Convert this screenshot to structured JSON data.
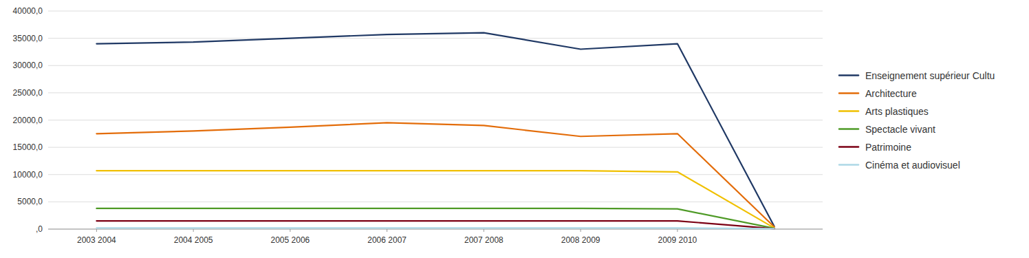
{
  "chart_data": {
    "type": "line",
    "x": [
      2002.5,
      2003.5,
      2004.5,
      2005.5,
      2006.5,
      2007.5,
      2008.5,
      2009.5
    ],
    "xlim": [
      2002,
      2010
    ],
    "xticks": [
      {
        "value": 2002.5,
        "label": "2003 2004"
      },
      {
        "value": 2003.5,
        "label": "2004 2005"
      },
      {
        "value": 2004.5,
        "label": "2005 2006"
      },
      {
        "value": 2005.5,
        "label": "2006 2007"
      },
      {
        "value": 2006.5,
        "label": "2007 2008"
      },
      {
        "value": 2007.5,
        "label": "2008 2009"
      },
      {
        "value": 2008.5,
        "label": "2009 2010"
      }
    ],
    "ylim": [
      0,
      40000
    ],
    "yticks": [
      {
        "value": 0,
        "label": ",0"
      },
      {
        "value": 5000,
        "label": "5000,0"
      },
      {
        "value": 10000,
        "label": "10000,0"
      },
      {
        "value": 15000,
        "label": "15000,0"
      },
      {
        "value": 20000,
        "label": "20000,0"
      },
      {
        "value": 25000,
        "label": "25000,0"
      },
      {
        "value": 30000,
        "label": "30000,0"
      },
      {
        "value": 35000,
        "label": "35000,0"
      },
      {
        "value": 40000,
        "label": "40000,0"
      }
    ],
    "grid": true,
    "legend": "right",
    "series": [
      {
        "name": "Enseignement supérieur Cultu",
        "color": "#1F3864",
        "values": [
          34000,
          34300,
          35000,
          35700,
          36000,
          33000,
          34000,
          500
        ]
      },
      {
        "name": "Architecture",
        "color": "#E36C09",
        "values": [
          17500,
          18000,
          18700,
          19500,
          19000,
          17000,
          17500,
          400
        ]
      },
      {
        "name": "Arts plastiques",
        "color": "#F0C000",
        "values": [
          10700,
          10700,
          10700,
          10700,
          10700,
          10700,
          10500,
          200
        ]
      },
      {
        "name": "Spectacle vivant",
        "color": "#4E9A26",
        "values": [
          3800,
          3800,
          3800,
          3800,
          3800,
          3800,
          3700,
          150
        ]
      },
      {
        "name": "Patrimoine",
        "color": "#7B0014",
        "values": [
          1500,
          1500,
          1500,
          1500,
          1500,
          1500,
          1500,
          80
        ]
      },
      {
        "name": "Cinéma et audiovisuel",
        "color": "#ADD8E6",
        "values": [
          200,
          200,
          200,
          200,
          200,
          200,
          200,
          80
        ]
      }
    ]
  }
}
